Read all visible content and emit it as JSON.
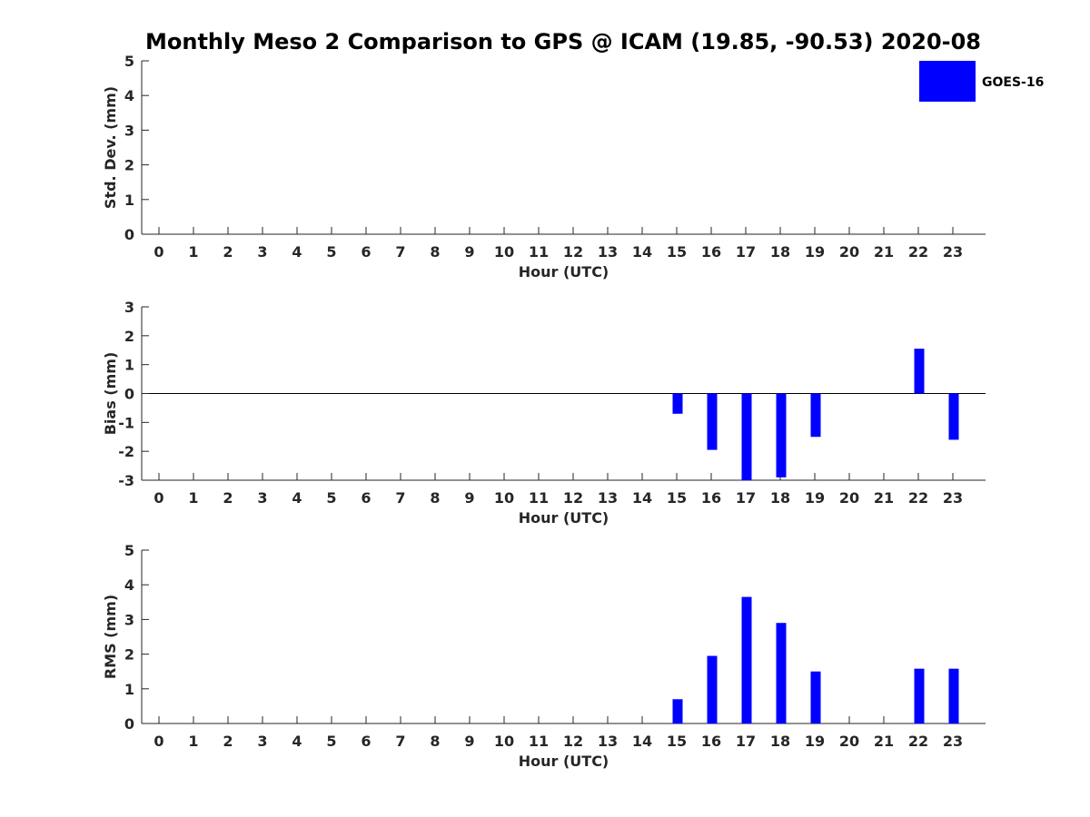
{
  "chart_data": {
    "type": "bar",
    "title": "Monthly Meso 2 Comparison to GPS @ ICAM (19.85, -90.53) 2020-08",
    "colors": {
      "series": "#0000ff",
      "axis": "#262626"
    },
    "legend": {
      "entries": [
        "GOES-16"
      ],
      "placement": "top-right"
    },
    "categories": [
      "0",
      "1",
      "2",
      "3",
      "4",
      "5",
      "6",
      "7",
      "8",
      "9",
      "10",
      "11",
      "12",
      "13",
      "14",
      "15",
      "16",
      "17",
      "18",
      "19",
      "20",
      "21",
      "22",
      "23"
    ],
    "panels": [
      {
        "id": "std",
        "ylabel": "Std. Dev. (mm)",
        "xlabel": "Hour (UTC)",
        "ylim": [
          0,
          5
        ],
        "yticks": [
          "0",
          "1",
          "2",
          "3",
          "4",
          "5"
        ],
        "series": [
          {
            "name": "GOES-16",
            "values": [
              null,
              null,
              null,
              null,
              null,
              null,
              null,
              null,
              null,
              null,
              null,
              null,
              null,
              null,
              null,
              null,
              null,
              null,
              null,
              null,
              null,
              null,
              null,
              null
            ]
          }
        ]
      },
      {
        "id": "bias",
        "ylabel": "Bias (mm)",
        "xlabel": "Hour (UTC)",
        "ylim": [
          -3,
          3
        ],
        "yticks": [
          "-3",
          "-2",
          "-1",
          "0",
          "1",
          "2",
          "3"
        ],
        "zero_line": true,
        "series": [
          {
            "name": "GOES-16",
            "values": [
              null,
              null,
              null,
              null,
              null,
              null,
              null,
              null,
              null,
              null,
              null,
              null,
              null,
              null,
              null,
              -0.7,
              -1.95,
              -3.0,
              -2.9,
              -1.5,
              null,
              null,
              1.55,
              -1.6
            ]
          }
        ]
      },
      {
        "id": "rms",
        "ylabel": "RMS (mm)",
        "xlabel": "Hour (UTC)",
        "ylim": [
          0,
          5
        ],
        "yticks": [
          "0",
          "1",
          "2",
          "3",
          "4",
          "5"
        ],
        "series": [
          {
            "name": "GOES-16",
            "values": [
              null,
              null,
              null,
              null,
              null,
              null,
              null,
              null,
              null,
              null,
              null,
              null,
              null,
              null,
              null,
              0.7,
              1.95,
              3.65,
              2.9,
              1.5,
              null,
              null,
              1.58,
              1.58
            ]
          }
        ]
      }
    ]
  }
}
